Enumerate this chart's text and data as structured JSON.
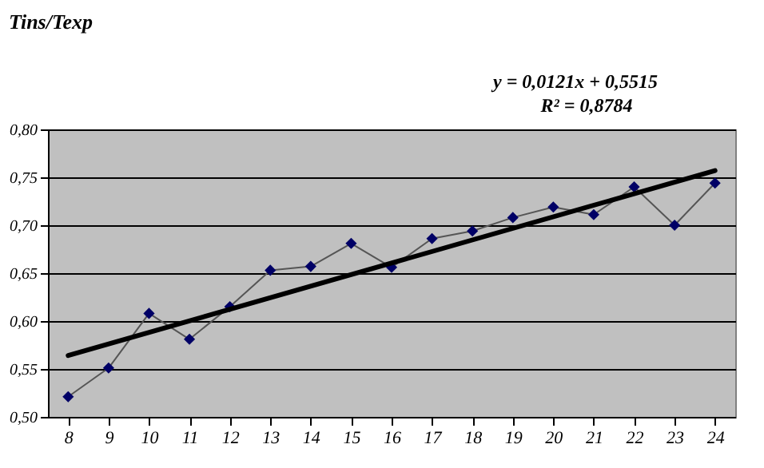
{
  "chart_data": {
    "type": "line",
    "title": "Tins/Texp",
    "categories": [
      "8",
      "9",
      "10",
      "11",
      "12",
      "13",
      "14",
      "15",
      "16",
      "17",
      "18",
      "19",
      "20",
      "21",
      "22",
      "23",
      "24"
    ],
    "series": [
      {
        "color": "#000066",
        "marker": "diamond",
        "values": [
          0.521,
          0.551,
          0.608,
          0.581,
          0.615,
          0.653,
          0.657,
          0.681,
          0.656,
          0.686,
          0.694,
          0.708,
          0.719,
          0.711,
          0.74,
          0.7,
          0.744
        ]
      },
      {
        "color": "#000000",
        "marker": "none",
        "x": [
          "8",
          "24"
        ],
        "values": [
          0.564,
          0.757
        ]
      }
    ],
    "ylim": [
      0.5,
      0.8
    ],
    "yticks": [
      {
        "value": 0.5,
        "label": "0,50"
      },
      {
        "value": 0.55,
        "label": "0,55"
      },
      {
        "value": 0.6,
        "label": "0,60"
      },
      {
        "value": 0.65,
        "label": "0,65"
      },
      {
        "value": 0.7,
        "label": "0,70"
      },
      {
        "value": 0.75,
        "label": "0,75"
      },
      {
        "value": 0.8,
        "label": "0,80"
      }
    ],
    "grid": "y",
    "annotations": [
      "y = 0,0121x + 0,5515",
      "R² = 0,8784"
    ]
  }
}
